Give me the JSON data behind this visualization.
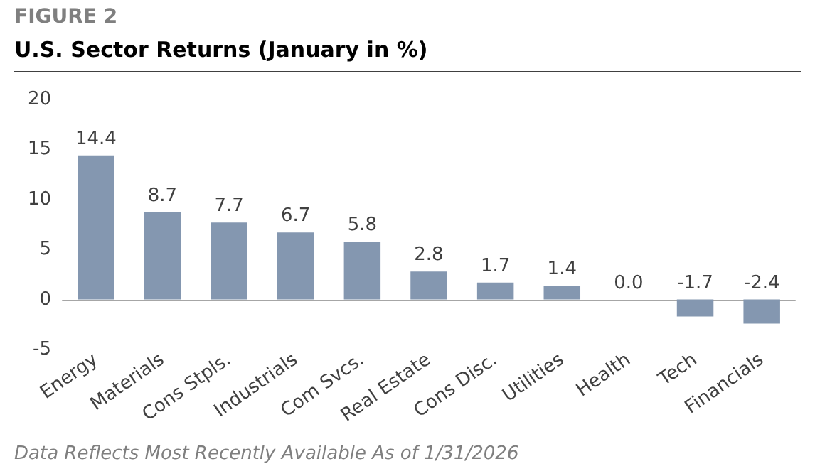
{
  "chart_data": {
    "type": "bar",
    "title": "U.S. Sector Returns (January in %)",
    "annotations": [
      "FIGURE 2",
      "Data Reflects Most Recently Available As of 1/31/2026"
    ],
    "categories": [
      "Energy",
      "Materials",
      "Cons Stpls.",
      "Industrials",
      "Com Svcs.",
      "Real Estate",
      "Cons Disc.",
      "Utilities",
      "Health",
      "Tech",
      "Financials"
    ],
    "values": [
      14.4,
      8.7,
      7.7,
      6.7,
      5.8,
      2.8,
      1.7,
      1.4,
      0.0,
      -1.7,
      -2.4
    ],
    "value_labels": [
      "14.4",
      "8.7",
      "7.7",
      "6.7",
      "5.8",
      "2.8",
      "1.7",
      "1.4",
      "0.0",
      "-1.7",
      "-2.4"
    ],
    "color": "#8497b0",
    "ylim": [
      -5,
      20
    ],
    "yticks": [
      -5,
      0,
      5,
      10,
      15,
      20
    ]
  }
}
